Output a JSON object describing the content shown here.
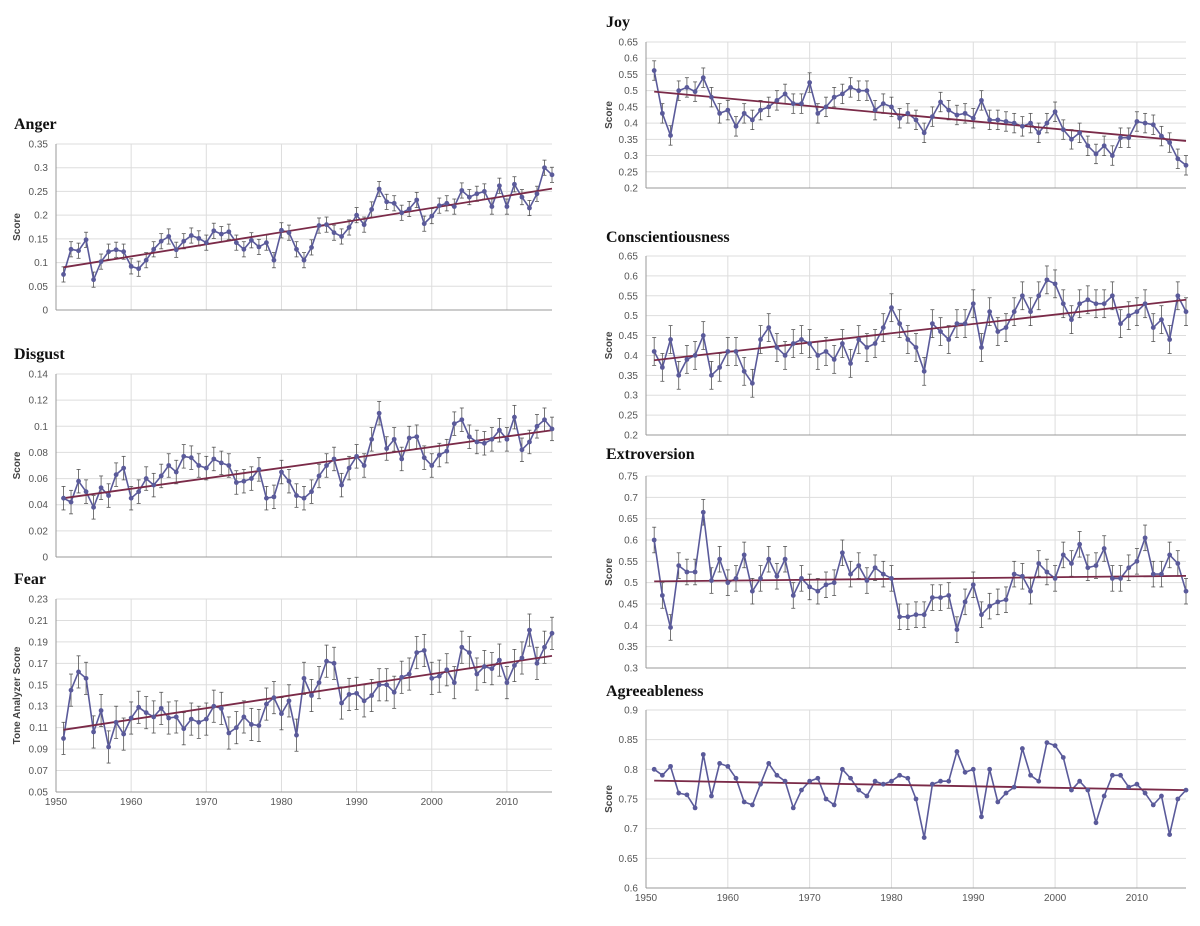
{
  "colors": {
    "series": "#5a5a9a",
    "trend": "#7a2a48",
    "grid": "#dddddd",
    "axis": "#999999",
    "errorbar": "#555555"
  },
  "x_axis": {
    "ticks": [
      "1950",
      "1960",
      "1970",
      "1980",
      "1990",
      "2000",
      "2010"
    ]
  },
  "chart_data": [
    {
      "id": "anger",
      "type": "line",
      "title": "Anger",
      "ylabel": "Score",
      "ylim": [
        0,
        0.35
      ],
      "yticks": [
        "0",
        "0.05",
        "0.1",
        "0.15",
        "0.2",
        "0.25",
        "0.3",
        "0.35"
      ],
      "xlim": [
        1950,
        2016
      ],
      "x_start": 1951,
      "x_end": 2016,
      "grid": true,
      "error_bars": true,
      "error": 0.016,
      "trend": [
        [
          1951,
          0.09
        ],
        [
          2016,
          0.256
        ]
      ],
      "series": [
        {
          "values": [
            0.075,
            0.128,
            0.125,
            0.148,
            0.064,
            0.102,
            0.123,
            0.127,
            0.123,
            0.092,
            0.087,
            0.105,
            0.128,
            0.145,
            0.155,
            0.127,
            0.145,
            0.157,
            0.151,
            0.142,
            0.167,
            0.16,
            0.165,
            0.142,
            0.128,
            0.147,
            0.133,
            0.142,
            0.105,
            0.168,
            0.163,
            0.128,
            0.105,
            0.132,
            0.178,
            0.18,
            0.163,
            0.155,
            0.174,
            0.2,
            0.18,
            0.212,
            0.255,
            0.228,
            0.225,
            0.205,
            0.213,
            0.232,
            0.182,
            0.198,
            0.22,
            0.225,
            0.218,
            0.252,
            0.238,
            0.245,
            0.25,
            0.218,
            0.262,
            0.218,
            0.265,
            0.238,
            0.215,
            0.245,
            0.3,
            0.285
          ]
        }
      ]
    },
    {
      "id": "disgust",
      "type": "line",
      "title": "Disgust",
      "ylabel": "Score",
      "ylim": [
        0,
        0.14
      ],
      "yticks": [
        "0",
        "0.02",
        "0.04",
        "0.06",
        "0.08",
        "0.1",
        "0.12",
        "0.14"
      ],
      "xlim": [
        1950,
        2016
      ],
      "x_start": 1951,
      "x_end": 2016,
      "grid": true,
      "error_bars": true,
      "error": 0.009,
      "trend": [
        [
          1951,
          0.045
        ],
        [
          2016,
          0.097
        ]
      ],
      "series": [
        {
          "values": [
            0.045,
            0.042,
            0.058,
            0.05,
            0.038,
            0.053,
            0.047,
            0.063,
            0.068,
            0.045,
            0.05,
            0.06,
            0.055,
            0.062,
            0.07,
            0.065,
            0.077,
            0.076,
            0.07,
            0.068,
            0.075,
            0.072,
            0.07,
            0.057,
            0.058,
            0.06,
            0.067,
            0.045,
            0.046,
            0.065,
            0.058,
            0.047,
            0.045,
            0.05,
            0.062,
            0.07,
            0.075,
            0.055,
            0.068,
            0.077,
            0.07,
            0.09,
            0.11,
            0.083,
            0.09,
            0.075,
            0.091,
            0.092,
            0.076,
            0.07,
            0.078,
            0.081,
            0.102,
            0.105,
            0.092,
            0.088,
            0.087,
            0.09,
            0.097,
            0.09,
            0.107,
            0.082,
            0.088,
            0.1,
            0.105,
            0.098
          ]
        }
      ]
    },
    {
      "id": "fear",
      "type": "line",
      "title": "Fear",
      "ylabel": "Tone Analyzer Score",
      "ylim": [
        0.05,
        0.23
      ],
      "yticks": [
        "0.05",
        "0.07",
        "0.09",
        "0.11",
        "0.13",
        "0.15",
        "0.17",
        "0.19",
        "0.21",
        "0.23"
      ],
      "xlim": [
        1950,
        2016
      ],
      "x_start": 1951,
      "x_end": 2016,
      "grid": true,
      "error_bars": true,
      "error": 0.015,
      "trend": [
        [
          1951,
          0.108
        ],
        [
          2016,
          0.177
        ]
      ],
      "series": [
        {
          "values": [
            0.1,
            0.145,
            0.162,
            0.156,
            0.106,
            0.126,
            0.092,
            0.115,
            0.104,
            0.119,
            0.129,
            0.124,
            0.12,
            0.128,
            0.119,
            0.12,
            0.109,
            0.118,
            0.115,
            0.118,
            0.13,
            0.128,
            0.105,
            0.11,
            0.12,
            0.113,
            0.112,
            0.132,
            0.138,
            0.123,
            0.135,
            0.103,
            0.156,
            0.14,
            0.152,
            0.172,
            0.17,
            0.133,
            0.141,
            0.142,
            0.135,
            0.14,
            0.15,
            0.15,
            0.143,
            0.157,
            0.16,
            0.18,
            0.182,
            0.156,
            0.158,
            0.164,
            0.152,
            0.185,
            0.18,
            0.16,
            0.167,
            0.165,
            0.173,
            0.152,
            0.168,
            0.175,
            0.201,
            0.17,
            0.185,
            0.198
          ]
        }
      ]
    },
    {
      "id": "joy",
      "type": "line",
      "title": "Joy",
      "ylabel": "Score",
      "ylim": [
        0.2,
        0.65
      ],
      "yticks": [
        "0.2",
        "0.25",
        "0.3",
        "0.35",
        "0.4",
        "0.45",
        "0.5",
        "0.55",
        "0.6",
        "0.65"
      ],
      "xlim": [
        1950,
        2016
      ],
      "x_start": 1951,
      "x_end": 2016,
      "grid": true,
      "error_bars": true,
      "error": 0.03,
      "trend": [
        [
          1951,
          0.497
        ],
        [
          2016,
          0.345
        ]
      ],
      "series": [
        {
          "values": [
            0.562,
            0.43,
            0.362,
            0.5,
            0.51,
            0.497,
            0.54,
            0.48,
            0.43,
            0.44,
            0.39,
            0.43,
            0.41,
            0.44,
            0.45,
            0.47,
            0.49,
            0.46,
            0.46,
            0.525,
            0.43,
            0.45,
            0.48,
            0.49,
            0.51,
            0.5,
            0.5,
            0.44,
            0.46,
            0.45,
            0.415,
            0.43,
            0.41,
            0.37,
            0.42,
            0.465,
            0.44,
            0.425,
            0.43,
            0.415,
            0.47,
            0.41,
            0.41,
            0.405,
            0.4,
            0.39,
            0.4,
            0.37,
            0.4,
            0.435,
            0.38,
            0.35,
            0.37,
            0.33,
            0.305,
            0.33,
            0.3,
            0.355,
            0.355,
            0.405,
            0.4,
            0.395,
            0.36,
            0.34,
            0.29,
            0.27
          ]
        }
      ]
    },
    {
      "id": "conscientiousness",
      "type": "line",
      "title": "Conscientiousness",
      "ylabel": "Score",
      "ylim": [
        0.2,
        0.65
      ],
      "yticks": [
        "0.2",
        "0.25",
        "0.3",
        "0.35",
        "0.4",
        "0.45",
        "0.5",
        "0.55",
        "0.6",
        "0.65"
      ],
      "xlim": [
        1950,
        2016
      ],
      "x_start": 1951,
      "x_end": 2016,
      "grid": true,
      "error_bars": true,
      "error": 0.035,
      "trend": [
        [
          1951,
          0.388
        ],
        [
          2016,
          0.54
        ]
      ],
      "series": [
        {
          "values": [
            0.41,
            0.37,
            0.44,
            0.35,
            0.39,
            0.4,
            0.45,
            0.35,
            0.37,
            0.41,
            0.41,
            0.36,
            0.33,
            0.44,
            0.47,
            0.42,
            0.4,
            0.43,
            0.44,
            0.43,
            0.4,
            0.41,
            0.39,
            0.43,
            0.38,
            0.44,
            0.42,
            0.43,
            0.47,
            0.52,
            0.48,
            0.44,
            0.42,
            0.36,
            0.48,
            0.46,
            0.44,
            0.48,
            0.48,
            0.53,
            0.42,
            0.51,
            0.46,
            0.47,
            0.51,
            0.55,
            0.51,
            0.55,
            0.59,
            0.58,
            0.53,
            0.49,
            0.53,
            0.54,
            0.53,
            0.53,
            0.55,
            0.48,
            0.5,
            0.51,
            0.53,
            0.47,
            0.49,
            0.44,
            0.55,
            0.51
          ]
        }
      ]
    },
    {
      "id": "extroversion",
      "type": "line",
      "title": "Extroversion",
      "ylabel": "Score",
      "ylim": [
        0.3,
        0.75
      ],
      "yticks": [
        "0.3",
        "0.35",
        "0.4",
        "0.45",
        "0.5",
        "0.55",
        "0.6",
        "0.65",
        "0.7",
        "0.75"
      ],
      "xlim": [
        1950,
        2016
      ],
      "x_start": 1951,
      "x_end": 2016,
      "grid": true,
      "error_bars": true,
      "error": 0.03,
      "trend": [
        [
          1951,
          0.503
        ],
        [
          2016,
          0.516
        ]
      ],
      "series": [
        {
          "values": [
            0.6,
            0.47,
            0.395,
            0.54,
            0.525,
            0.525,
            0.665,
            0.505,
            0.555,
            0.5,
            0.51,
            0.565,
            0.48,
            0.51,
            0.555,
            0.515,
            0.555,
            0.47,
            0.51,
            0.49,
            0.48,
            0.495,
            0.5,
            0.57,
            0.52,
            0.54,
            0.505,
            0.535,
            0.52,
            0.51,
            0.42,
            0.42,
            0.425,
            0.425,
            0.465,
            0.465,
            0.47,
            0.39,
            0.455,
            0.495,
            0.425,
            0.445,
            0.455,
            0.46,
            0.52,
            0.515,
            0.48,
            0.545,
            0.525,
            0.51,
            0.565,
            0.545,
            0.59,
            0.535,
            0.54,
            0.58,
            0.51,
            0.51,
            0.535,
            0.55,
            0.605,
            0.52,
            0.52,
            0.565,
            0.545,
            0.48
          ]
        }
      ]
    },
    {
      "id": "agreeableness",
      "type": "line",
      "title": "Agreeableness",
      "ylabel": "Score",
      "ylim": [
        0.6,
        0.9
      ],
      "yticks": [
        "0.6",
        "0.65",
        "0.7",
        "0.75",
        "0.8",
        "0.85",
        "0.9"
      ],
      "xlim": [
        1950,
        2016
      ],
      "x_start": 1951,
      "x_end": 2016,
      "grid": true,
      "error_bars": false,
      "trend": [
        [
          1951,
          0.781
        ],
        [
          2016,
          0.765
        ]
      ],
      "series": [
        {
          "values": [
            0.8,
            0.79,
            0.805,
            0.76,
            0.757,
            0.735,
            0.825,
            0.755,
            0.81,
            0.805,
            0.785,
            0.745,
            0.74,
            0.775,
            0.81,
            0.79,
            0.78,
            0.735,
            0.765,
            0.78,
            0.785,
            0.75,
            0.74,
            0.8,
            0.785,
            0.765,
            0.755,
            0.78,
            0.775,
            0.78,
            0.79,
            0.785,
            0.75,
            0.685,
            0.775,
            0.78,
            0.78,
            0.83,
            0.795,
            0.8,
            0.72,
            0.8,
            0.745,
            0.76,
            0.77,
            0.835,
            0.79,
            0.78,
            0.845,
            0.84,
            0.82,
            0.765,
            0.78,
            0.765,
            0.71,
            0.755,
            0.79,
            0.79,
            0.77,
            0.775,
            0.76,
            0.74,
            0.755,
            0.69,
            0.75,
            0.765
          ]
        }
      ]
    }
  ]
}
